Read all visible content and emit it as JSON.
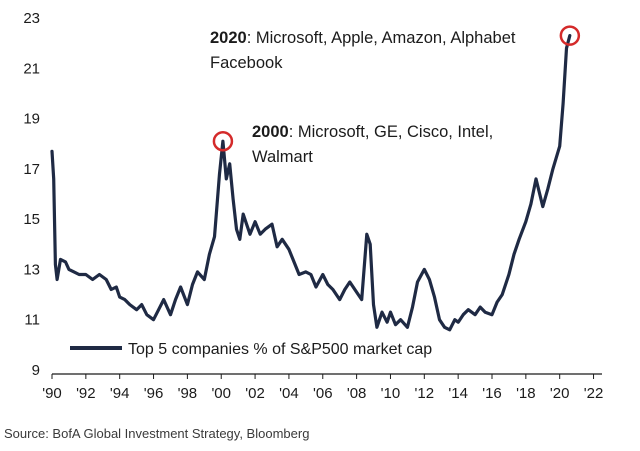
{
  "chart_data": {
    "type": "line",
    "title": "",
    "xlabel": "",
    "ylabel": "",
    "xlim": [
      1990,
      2022.5
    ],
    "ylim": [
      9,
      23
    ],
    "y_ticks": [
      9,
      11,
      13,
      15,
      17,
      19,
      21,
      23
    ],
    "x_ticks": [
      1990,
      1992,
      1994,
      1996,
      1998,
      2000,
      2002,
      2004,
      2006,
      2008,
      2010,
      2012,
      2014,
      2016,
      2018,
      2020,
      2022
    ],
    "x_tick_labels": [
      "'90",
      "'92",
      "'94",
      "'96",
      "'98",
      "'00",
      "'02",
      "'04",
      "'06",
      "'08",
      "'10",
      "'12",
      "'14",
      "'16",
      "'18",
      "'20",
      "'22"
    ],
    "grid": false,
    "legend_position": "bottom-left",
    "series": [
      {
        "name": "Top 5 companies % of S&P500 market cap",
        "color": "#1f2a44",
        "x": [
          1990.0,
          1990.1,
          1990.2,
          1990.3,
          1990.5,
          1990.8,
          1991.0,
          1991.3,
          1991.6,
          1992.0,
          1992.4,
          1992.8,
          1993.2,
          1993.5,
          1993.8,
          1994.0,
          1994.3,
          1994.6,
          1995.0,
          1995.3,
          1995.6,
          1996.0,
          1996.3,
          1996.6,
          1997.0,
          1997.3,
          1997.6,
          1998.0,
          1998.3,
          1998.6,
          1999.0,
          1999.3,
          1999.6,
          1999.9,
          2000.1,
          2000.3,
          2000.5,
          2000.7,
          2000.9,
          2001.1,
          2001.3,
          2001.5,
          2001.7,
          2002.0,
          2002.3,
          2002.6,
          2003.0,
          2003.3,
          2003.6,
          2004.0,
          2004.3,
          2004.6,
          2005.0,
          2005.3,
          2005.6,
          2006.0,
          2006.3,
          2006.6,
          2007.0,
          2007.3,
          2007.6,
          2008.0,
          2008.3,
          2008.6,
          2008.8,
          2009.0,
          2009.2,
          2009.5,
          2009.8,
          2010.0,
          2010.3,
          2010.6,
          2011.0,
          2011.3,
          2011.6,
          2012.0,
          2012.3,
          2012.6,
          2012.9,
          2013.2,
          2013.5,
          2013.8,
          2014.0,
          2014.3,
          2014.6,
          2015.0,
          2015.3,
          2015.6,
          2016.0,
          2016.3,
          2016.6,
          2017.0,
          2017.3,
          2017.6,
          2018.0,
          2018.3,
          2018.6,
          2019.0,
          2019.3,
          2019.6,
          2020.0,
          2020.2,
          2020.4,
          2020.6
        ],
        "values": [
          17.7,
          16.6,
          13.2,
          12.6,
          13.4,
          13.3,
          13.0,
          12.9,
          12.8,
          12.8,
          12.6,
          12.8,
          12.6,
          12.2,
          12.3,
          11.9,
          11.8,
          11.6,
          11.4,
          11.6,
          11.2,
          11.0,
          11.4,
          11.8,
          11.2,
          11.8,
          12.3,
          11.6,
          12.4,
          12.9,
          12.6,
          13.6,
          14.3,
          16.8,
          18.1,
          16.6,
          17.2,
          15.8,
          14.6,
          14.2,
          15.2,
          14.8,
          14.4,
          14.9,
          14.4,
          14.6,
          14.8,
          13.9,
          14.2,
          13.8,
          13.3,
          12.8,
          12.9,
          12.8,
          12.3,
          12.8,
          12.4,
          12.2,
          11.8,
          12.2,
          12.5,
          12.1,
          11.8,
          14.4,
          14.0,
          11.6,
          10.7,
          11.3,
          10.9,
          11.3,
          10.8,
          11.0,
          10.7,
          11.5,
          12.5,
          13.0,
          12.6,
          11.9,
          11.0,
          10.7,
          10.6,
          11.0,
          10.9,
          11.2,
          11.4,
          11.2,
          11.5,
          11.3,
          11.2,
          11.7,
          12.0,
          12.8,
          13.6,
          14.2,
          14.9,
          15.6,
          16.6,
          15.5,
          16.2,
          17.0,
          17.9,
          19.6,
          21.8,
          22.3
        ]
      }
    ],
    "annotations": [
      {
        "bold": "2000",
        "text": ": Microsoft, GE, Cisco, Intel,",
        "line2": "Walmart",
        "x": 2000.1,
        "y": 18.1
      },
      {
        "bold": "2020",
        "text": ": Microsoft, Apple, Amazon, Alphabet",
        "line2": "Facebook",
        "x": 2020.6,
        "y": 22.3
      }
    ],
    "highlight_color": "#d42a2a"
  },
  "source": "Source: BofA Global Investment Strategy, Bloomberg"
}
